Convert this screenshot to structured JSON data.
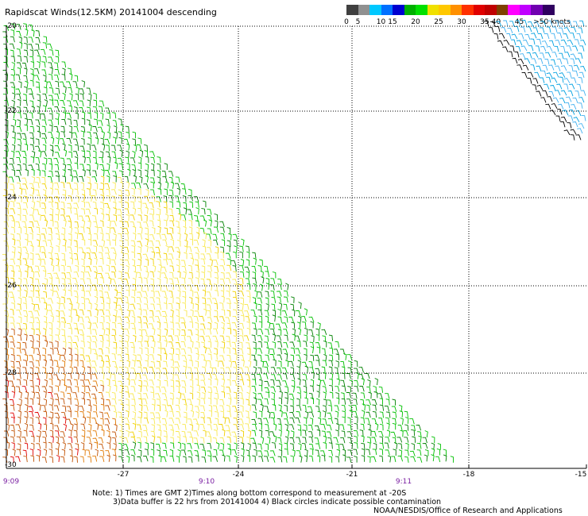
{
  "title": "Rapidscat Winds(12.5KM) 20141004 descending",
  "legend": {
    "bins": [
      {
        "label": "0",
        "color": "#404040"
      },
      {
        "label": "5",
        "color": "#909090"
      },
      {
        "label": "",
        "color": "#00c8ff"
      },
      {
        "label": "10",
        "color": "#0070ff"
      },
      {
        "label": "15",
        "color": "#0000d0"
      },
      {
        "label": "",
        "color": "#00b000"
      },
      {
        "label": "20",
        "color": "#00e000"
      },
      {
        "label": "",
        "color": "#f0e000"
      },
      {
        "label": "25",
        "color": "#ffc800"
      },
      {
        "label": "",
        "color": "#ff9000"
      },
      {
        "label": "30",
        "color": "#ff3000"
      },
      {
        "label": "",
        "color": "#e00000"
      },
      {
        "label": "35",
        "color": "#c00000"
      },
      {
        "label": "40",
        "color": "#804000"
      },
      {
        "label": "",
        "color": "#ff00ff"
      },
      {
        "label": "45",
        "color": "#c000ff"
      },
      {
        "label": "",
        "color": "#7000b0"
      },
      {
        "label": ">50 knots",
        "color": "#300060"
      }
    ]
  },
  "axes": {
    "lat_labels": [
      "-20",
      "-22",
      "-24",
      "-26",
      "-28",
      "-30"
    ],
    "lon_labels": [
      "-27",
      "-24",
      "-21",
      "-18",
      "-15"
    ],
    "time_labels": [
      "9:09",
      "9:10",
      "9:11"
    ]
  },
  "notes": [
    "Note: 1) Times are GMT 2)Times along bottom correspond to measurement at -20S",
    "3)Data buffer is 22 hrs from 20141004 4) Black circles indicate possible contamination"
  ],
  "credit": "NOAA/NESDIS/Office of Research and Applications",
  "colors": {
    "grid": "#000000",
    "time": "#7a1fa2"
  }
}
